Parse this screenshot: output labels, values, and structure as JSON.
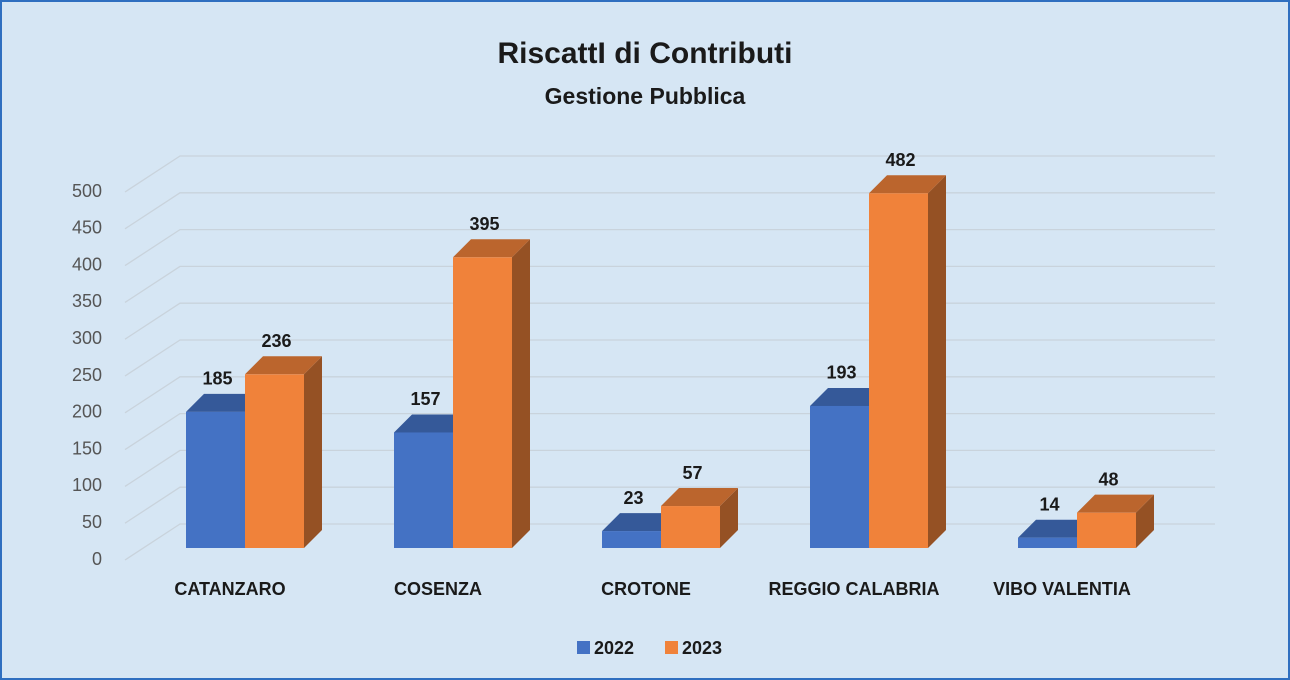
{
  "chart_data": {
    "type": "bar3d",
    "title": "RiscattI di Contributi",
    "subtitle": "Gestione Pubblica",
    "categories": [
      "CATANZARO",
      "COSENZA",
      "CROTONE",
      "REGGIO CALABRIA",
      "VIBO VALENTIA"
    ],
    "series": [
      {
        "name": "2022",
        "color": "#4472c4",
        "values": [
          185,
          157,
          23,
          193,
          14
        ]
      },
      {
        "name": "2023",
        "color": "#f0823a",
        "values": [
          236,
          395,
          57,
          482,
          48
        ]
      }
    ],
    "ylim": [
      0,
      500
    ],
    "yticks": [
      0,
      50,
      100,
      150,
      200,
      250,
      300,
      350,
      400,
      450,
      500
    ],
    "grid": true,
    "legend": "bottom"
  }
}
